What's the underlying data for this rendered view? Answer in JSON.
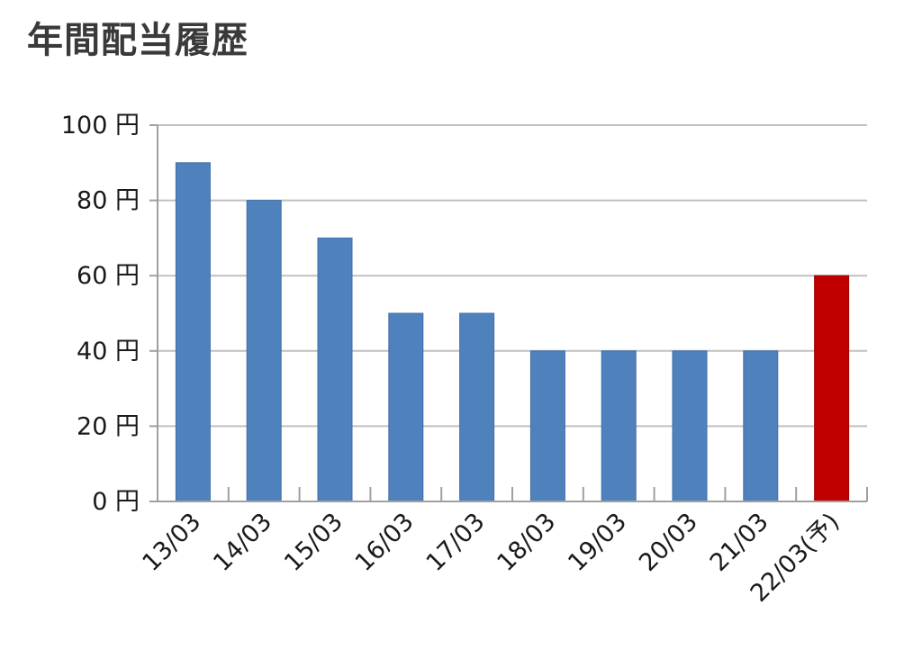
{
  "chart_data": {
    "type": "bar",
    "title": "年間配当履歴",
    "categories": [
      "13/03",
      "14/03",
      "15/03",
      "16/03",
      "17/03",
      "18/03",
      "19/03",
      "20/03",
      "21/03",
      "22/03(予)"
    ],
    "values": [
      90,
      80,
      70,
      50,
      50,
      40,
      40,
      40,
      40,
      60
    ],
    "colors": [
      "#4f81bd",
      "#4f81bd",
      "#4f81bd",
      "#4f81bd",
      "#4f81bd",
      "#4f81bd",
      "#4f81bd",
      "#4f81bd",
      "#4f81bd",
      "#c00000"
    ],
    "y_ticks": [
      {
        "value": 0,
        "label": "0 円"
      },
      {
        "value": 20,
        "label": "20 円"
      },
      {
        "value": 40,
        "label": "40 円"
      },
      {
        "value": 60,
        "label": "60 円"
      },
      {
        "value": 80,
        "label": "80 円"
      },
      {
        "value": 100,
        "label": "100 円"
      }
    ],
    "ylim": [
      0,
      100
    ],
    "xlabel": "",
    "ylabel": "",
    "grid": true,
    "legend": "none"
  }
}
